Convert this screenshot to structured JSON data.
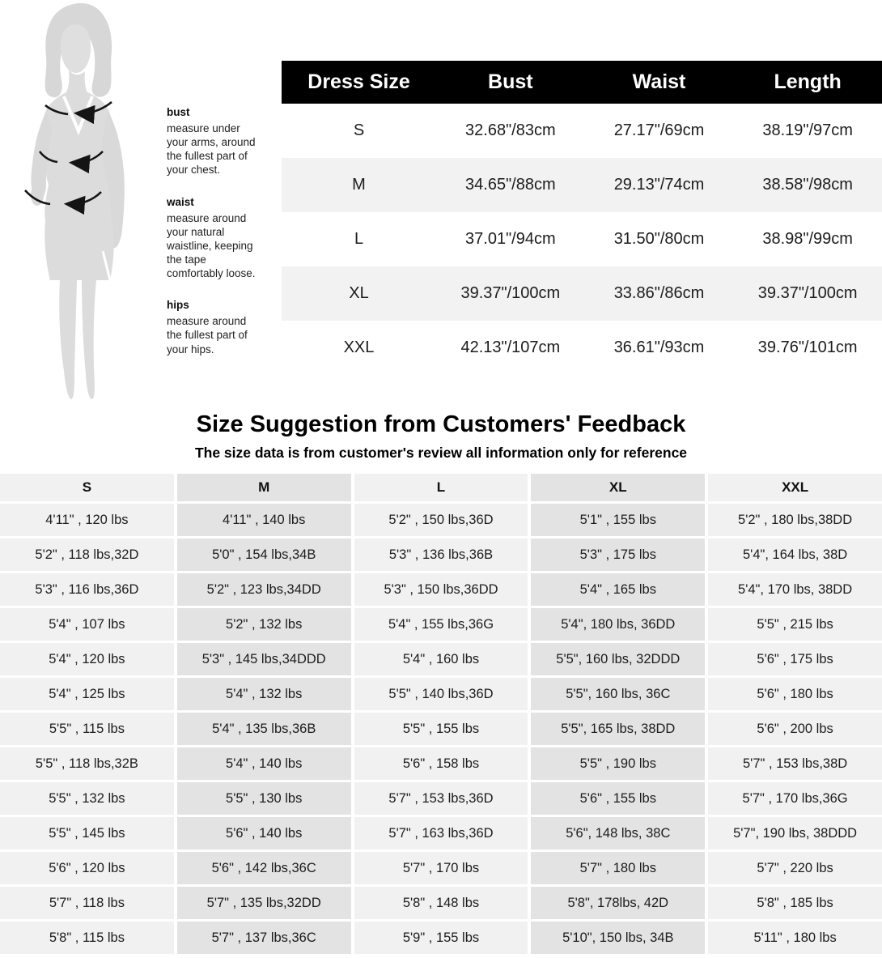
{
  "colors": {
    "size_table_header_bg": "#000000",
    "size_table_header_text": "#ffffff",
    "size_table_stripe_bg": "#f2f2f2",
    "feedback_light_col_bg": "#f1f1f1",
    "feedback_dark_col_bg": "#e3e3e3",
    "figure_gray": "#d9d9d9",
    "arrow_black": "#141414"
  },
  "measurement_guide": {
    "figure": "woman-silhouette-with-measure-arrows",
    "items": [
      {
        "label": "bust",
        "description": "measure under your arms, around the fullest part of your chest."
      },
      {
        "label": "waist",
        "description": "measure around your natural waistline, keeping the tape comfortably loose."
      },
      {
        "label": "hips",
        "description": "measure around the fullest part of your hips."
      }
    ]
  },
  "size_table": {
    "headers": [
      "Dress Size",
      "Bust",
      "Waist",
      "Length"
    ],
    "rows": [
      {
        "size": "S",
        "bust": "32.68\"/83cm",
        "waist": "27.17\"/69cm",
        "length": "38.19\"/97cm"
      },
      {
        "size": "M",
        "bust": "34.65\"/88cm",
        "waist": "29.13\"/74cm",
        "length": "38.58\"/98cm"
      },
      {
        "size": "L",
        "bust": "37.01\"/94cm",
        "waist": "31.50\"/80cm",
        "length": "38.98\"/99cm"
      },
      {
        "size": "XL",
        "bust": "39.37\"/100cm",
        "waist": "33.86\"/86cm",
        "length": "39.37\"/100cm"
      },
      {
        "size": "XXL",
        "bust": "42.13\"/107cm",
        "waist": "36.61\"/93cm",
        "length": "39.76\"/101cm"
      }
    ]
  },
  "feedback_section": {
    "title": "Size Suggestion from Customers' Feedback",
    "subtitle": "The size data is from customer's review all information only for reference",
    "table": {
      "columns": [
        "S",
        "M",
        "L",
        "XL",
        "XXL"
      ],
      "rows": [
        [
          "4'11\" , 120 lbs",
          "4'11\" , 140 lbs",
          "5'2\" , 150 lbs,36D",
          "5'1\" , 155 lbs",
          "5'2\" , 180 lbs,38DD"
        ],
        [
          "5'2\" , 118 lbs,32D",
          "5'0\" , 154 lbs,34B",
          "5'3\" , 136 lbs,36B",
          "5'3\" , 175 lbs",
          "5'4\", 164 lbs, 38D"
        ],
        [
          "5'3\" , 116 lbs,36D",
          "5'2\" , 123 lbs,34DD",
          "5'3\" , 150 lbs,36DD",
          "5'4\" , 165 lbs",
          "5'4\", 170 lbs, 38DD"
        ],
        [
          "5'4\" , 107 lbs",
          "5'2\" , 132 lbs",
          "5'4\" , 155 lbs,36G",
          "5'4\", 180 lbs, 36DD",
          "5'5\" , 215 lbs"
        ],
        [
          "5'4\" , 120 lbs",
          "5'3\" , 145 lbs,34DDD",
          "5'4\" , 160 lbs",
          "5'5\", 160 lbs, 32DDD",
          "5'6\" , 175 lbs"
        ],
        [
          "5'4\" , 125 lbs",
          "5'4\" , 132 lbs",
          "5'5\" , 140 lbs,36D",
          "5'5\", 160 lbs, 36C",
          "5'6\" , 180 lbs"
        ],
        [
          "5'5\" , 115 lbs",
          "5'4\" , 135 lbs,36B",
          "5'5\" , 155 lbs",
          "5'5\", 165 lbs, 38DD",
          "5'6\" , 200 lbs"
        ],
        [
          "5'5\" , 118 lbs,32B",
          "5'4\" , 140 lbs",
          "5'6\" , 158 lbs",
          "5'5\" , 190 lbs",
          "5'7\" , 153 lbs,38D"
        ],
        [
          "5'5\" , 132 lbs",
          "5'5\" , 130 lbs",
          "5'7\" , 153 lbs,36D",
          "5'6\" , 155 lbs",
          "5'7\" , 170 lbs,36G"
        ],
        [
          "5'5\" , 145 lbs",
          "5'6\" , 140 lbs",
          "5'7\" , 163 lbs,36D",
          "5'6\", 148 lbs, 38C",
          "5'7\", 190 lbs, 38DDD"
        ],
        [
          "5'6\" , 120 lbs",
          "5'6\" , 142 lbs,36C",
          "5'7\" , 170 lbs",
          "5'7\" , 180 lbs",
          "5'7\" , 220 lbs"
        ],
        [
          "5'7\" , 118 lbs",
          "5'7\" , 135 lbs,32DD",
          "5'8\" , 148 lbs",
          "5'8\", 178lbs, 42D",
          "5'8\" , 185 lbs"
        ],
        [
          "5'8\" , 115 lbs",
          "5'7\" , 137 lbs,36C",
          "5'9\" , 155 lbs",
          "5'10\", 150 lbs, 34B",
          "5'11\" , 180 lbs"
        ]
      ]
    }
  }
}
